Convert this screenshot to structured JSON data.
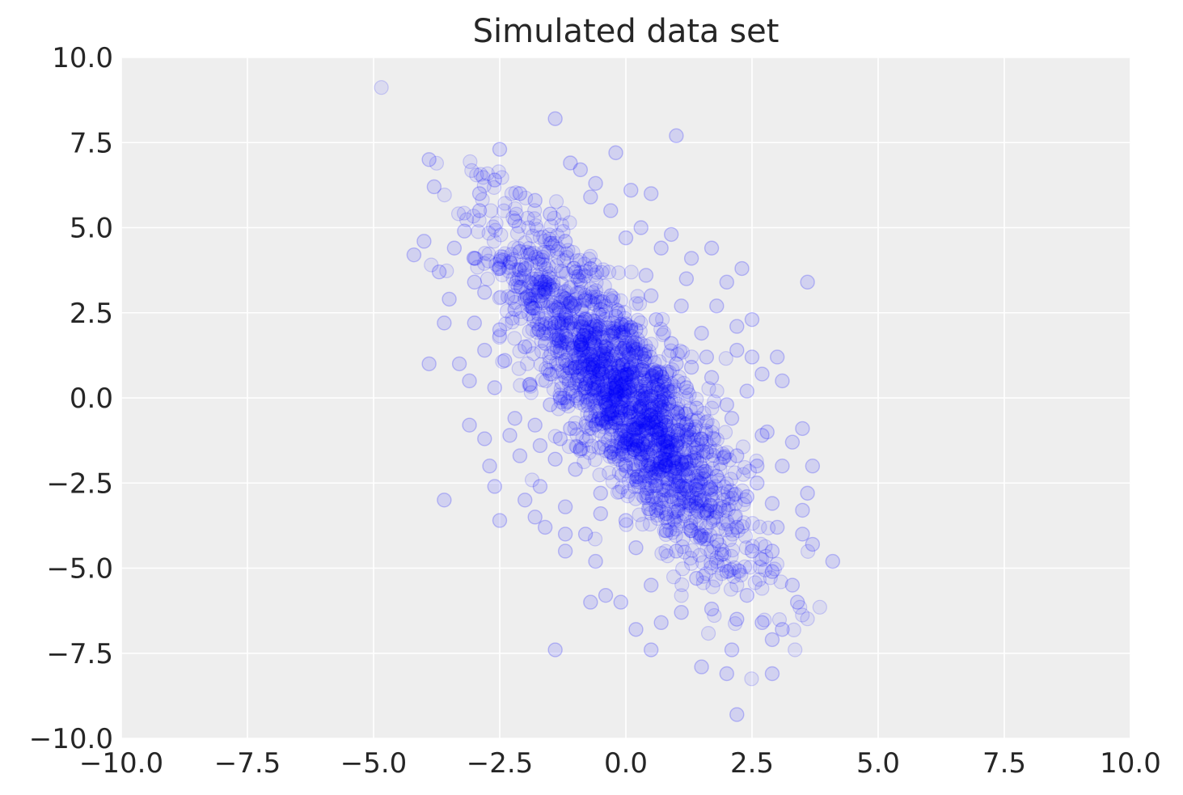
{
  "chart_data": {
    "type": "scatter",
    "title": "Simulated data set",
    "xlabel": "",
    "ylabel": "",
    "xlim": [
      -10,
      10
    ],
    "ylim": [
      -10,
      10
    ],
    "x_ticks": [
      "−10.0",
      "−7.5",
      "−5.0",
      "−2.5",
      "0.0",
      "2.5",
      "5.0",
      "7.5",
      "10.0"
    ],
    "y_ticks": [
      "10.0",
      "7.5",
      "5.0",
      "2.5",
      "0.0",
      "−2.5",
      "−5.0",
      "−7.5",
      "−10.0"
    ],
    "x_tick_values": [
      -10,
      -7.5,
      -5,
      -2.5,
      0,
      2.5,
      5,
      7.5,
      10
    ],
    "y_tick_values": [
      10,
      7.5,
      5,
      2.5,
      0,
      -2.5,
      -5,
      -7.5,
      -10
    ],
    "grid": true,
    "legend": "none",
    "colors": {
      "point": "#0000ff",
      "background": "#eeeeee",
      "grid": "#ffffff",
      "text": "#262626"
    },
    "series": [
      {
        "values_description": "approx",
        "points": [
          [
            -1.4,
            8.2
          ],
          [
            1.0,
            7.7
          ],
          [
            -2.5,
            7.3
          ],
          [
            -0.2,
            7.2
          ],
          [
            -3.9,
            7.0
          ],
          [
            -1.1,
            6.9
          ],
          [
            -0.9,
            6.7
          ],
          [
            -2.6,
            6.4
          ],
          [
            -0.6,
            6.3
          ],
          [
            -3.8,
            6.2
          ],
          [
            -2.9,
            6.0
          ],
          [
            0.1,
            6.1
          ],
          [
            -2.1,
            6.0
          ],
          [
            0.5,
            6.0
          ],
          [
            -0.7,
            5.9
          ],
          [
            -1.8,
            5.8
          ],
          [
            -4.0,
            4.6
          ],
          [
            -4.2,
            4.2
          ],
          [
            -3.2,
            4.9
          ],
          [
            -3.4,
            4.4
          ],
          [
            -3.0,
            4.1
          ],
          [
            -3.7,
            3.7
          ],
          [
            -3.0,
            3.4
          ],
          [
            -3.5,
            2.9
          ],
          [
            -3.6,
            2.2
          ],
          [
            -3.0,
            2.2
          ],
          [
            -3.9,
            1.0
          ],
          [
            -3.3,
            1.0
          ],
          [
            -2.8,
            1.4
          ],
          [
            -3.1,
            0.5
          ],
          [
            -3.1,
            -0.8
          ],
          [
            -2.8,
            -1.2
          ],
          [
            -2.7,
            -2.0
          ],
          [
            -2.6,
            -2.6
          ],
          [
            -3.6,
            -3.0
          ],
          [
            -2.5,
            -3.6
          ],
          [
            -1.8,
            -3.5
          ],
          [
            -1.4,
            -7.4
          ],
          [
            0.5,
            -7.4
          ],
          [
            2.1,
            -7.4
          ],
          [
            1.5,
            -7.9
          ],
          [
            2.0,
            -8.1
          ],
          [
            2.9,
            -8.1
          ],
          [
            2.2,
            -9.3
          ],
          [
            2.9,
            -7.1
          ],
          [
            3.1,
            -6.8
          ],
          [
            2.7,
            -6.6
          ],
          [
            3.4,
            -6.0
          ],
          [
            3.3,
            -5.5
          ],
          [
            4.1,
            -4.8
          ],
          [
            3.7,
            -4.3
          ],
          [
            3.5,
            -4.0
          ],
          [
            3.5,
            -3.3
          ],
          [
            3.6,
            -2.8
          ],
          [
            3.7,
            -2.0
          ],
          [
            3.1,
            -2.0
          ],
          [
            3.5,
            -0.9
          ],
          [
            3.1,
            0.5
          ],
          [
            3.0,
            1.2
          ],
          [
            3.6,
            3.4
          ],
          [
            2.3,
            3.8
          ],
          [
            1.7,
            4.4
          ],
          [
            2.5,
            2.3
          ],
          [
            2.2,
            2.1
          ],
          [
            -0.7,
            -6.0
          ],
          [
            -0.1,
            -6.0
          ],
          [
            0.2,
            -6.8
          ],
          [
            0.7,
            -6.6
          ],
          [
            1.1,
            -6.3
          ],
          [
            1.7,
            -6.2
          ],
          [
            2.2,
            -6.5
          ],
          [
            -1.2,
            -4.5
          ],
          [
            -0.4,
            -5.8
          ],
          [
            0.5,
            -5.5
          ],
          [
            1.4,
            -5.3
          ],
          [
            2.0,
            -5.1
          ],
          [
            2.4,
            -5.8
          ],
          [
            2.9,
            -5.1
          ],
          [
            -1.6,
            -3.8
          ],
          [
            -0.6,
            -4.8
          ],
          [
            0.2,
            -4.4
          ],
          [
            1.0,
            -4.5
          ],
          [
            1.8,
            -4.2
          ],
          [
            2.5,
            -4.5
          ],
          [
            2.9,
            -4.5
          ],
          [
            3.0,
            -3.8
          ],
          [
            -2.0,
            -3.0
          ],
          [
            -1.2,
            -4.0
          ],
          [
            0.8,
            -3.9
          ],
          [
            2.6,
            -2.5
          ],
          [
            2.9,
            -3.1
          ],
          [
            3.3,
            -1.3
          ],
          [
            2.8,
            -1.0
          ],
          [
            2.7,
            0.7
          ],
          [
            2.5,
            1.2
          ],
          [
            2.0,
            3.4
          ],
          [
            1.3,
            4.1
          ],
          [
            0.9,
            4.8
          ],
          [
            -2.2,
            5.2
          ],
          [
            -2.9,
            5.5
          ],
          [
            -1.5,
            5.4
          ],
          [
            -0.3,
            5.5
          ],
          [
            0.3,
            5.0
          ],
          [
            -2.5,
            3.8
          ],
          [
            -2.1,
            4.3
          ],
          [
            -1.2,
            4.6
          ],
          [
            0.0,
            4.7
          ],
          [
            0.7,
            4.4
          ],
          [
            -2.8,
            3.1
          ],
          [
            -2.2,
            2.6
          ],
          [
            -1.6,
            3.4
          ],
          [
            -0.7,
            3.8
          ],
          [
            0.4,
            3.6
          ],
          [
            1.2,
            3.5
          ],
          [
            1.8,
            2.7
          ],
          [
            -2.5,
            2.0
          ],
          [
            -2.0,
            1.5
          ],
          [
            -1.4,
            2.2
          ],
          [
            -0.5,
            2.6
          ],
          [
            0.6,
            2.3
          ],
          [
            1.5,
            1.9
          ],
          [
            2.2,
            1.4
          ],
          [
            -2.6,
            0.3
          ],
          [
            -1.9,
            0.4
          ],
          [
            -1.2,
            1.1
          ],
          [
            -0.4,
            1.5
          ],
          [
            0.3,
            1.3
          ],
          [
            1.0,
            1.0
          ],
          [
            1.7,
            0.6
          ],
          [
            2.4,
            0.2
          ],
          [
            -2.2,
            -0.6
          ],
          [
            -1.5,
            -0.2
          ],
          [
            -0.8,
            0.3
          ],
          [
            0.0,
            0.6
          ],
          [
            0.7,
            0.2
          ],
          [
            1.4,
            -0.3
          ],
          [
            2.1,
            -0.6
          ],
          [
            2.7,
            -1.1
          ],
          [
            -2.1,
            -1.7
          ],
          [
            -1.3,
            -1.2
          ],
          [
            -0.6,
            -0.8
          ],
          [
            0.1,
            -0.3
          ],
          [
            0.8,
            -0.8
          ],
          [
            1.5,
            -1.2
          ],
          [
            2.2,
            -1.7
          ],
          [
            -1.7,
            -2.6
          ],
          [
            -1.0,
            -2.1
          ],
          [
            -0.3,
            -1.6
          ],
          [
            0.4,
            -1.2
          ],
          [
            1.1,
            -1.9
          ],
          [
            1.8,
            -2.3
          ],
          [
            2.4,
            -2.9
          ],
          [
            -1.2,
            -3.2
          ],
          [
            -0.5,
            -2.8
          ],
          [
            0.2,
            -2.4
          ],
          [
            0.9,
            -2.9
          ],
          [
            1.6,
            -3.3
          ],
          [
            2.2,
            -3.8
          ],
          [
            -0.8,
            -4.0
          ],
          [
            0.0,
            -3.6
          ],
          [
            0.6,
            -3.3
          ],
          [
            1.3,
            -3.9
          ],
          [
            1.9,
            -4.6
          ],
          [
            -1.0,
            0.9
          ],
          [
            -0.2,
            0.1
          ],
          [
            0.5,
            -0.5
          ],
          [
            -0.6,
            1.9
          ],
          [
            0.2,
            2.0
          ],
          [
            -1.6,
            1.6
          ],
          [
            -1.1,
            2.8
          ],
          [
            -0.3,
            3.0
          ],
          [
            0.9,
            1.6
          ],
          [
            1.2,
            0.3
          ],
          [
            0.3,
            -1.9
          ],
          [
            -0.9,
            -1.5
          ],
          [
            -1.8,
            -0.8
          ],
          [
            -0.4,
            -0.2
          ],
          [
            0.1,
            0.9
          ],
          [
            0.6,
            0.7
          ],
          [
            -0.7,
            -0.5
          ],
          [
            1.0,
            -1.4
          ],
          [
            -0.1,
            -1.1
          ],
          [
            -1.3,
            0.0
          ],
          [
            -1.9,
            2.9
          ],
          [
            -1.0,
            3.7
          ],
          [
            0.5,
            3.0
          ],
          [
            1.6,
            1.2
          ],
          [
            2.0,
            -0.2
          ],
          [
            1.2,
            -2.6
          ],
          [
            -0.5,
            -3.4
          ],
          [
            -2.3,
            -1.1
          ],
          [
            -1.4,
            -1.8
          ],
          [
            0.8,
            -3.4
          ],
          [
            0.0,
            -2.0
          ],
          [
            -0.8,
            2.3
          ],
          [
            -0.2,
            2.4
          ],
          [
            -1.5,
            0.7
          ],
          [
            0.4,
            0.4
          ],
          [
            -0.3,
            -0.6
          ],
          [
            0.7,
            -0.1
          ],
          [
            1.3,
            0.9
          ],
          [
            -0.9,
            1.4
          ],
          [
            0.2,
            -0.9
          ],
          [
            -1.1,
            -0.9
          ],
          [
            1.6,
            -1.6
          ],
          [
            -2.4,
            1.1
          ],
          [
            -1.7,
            -1.4
          ],
          [
            2.6,
            -2.0
          ],
          [
            -2.0,
            3.8
          ],
          [
            1.1,
            2.7
          ]
        ]
      }
    ]
  }
}
